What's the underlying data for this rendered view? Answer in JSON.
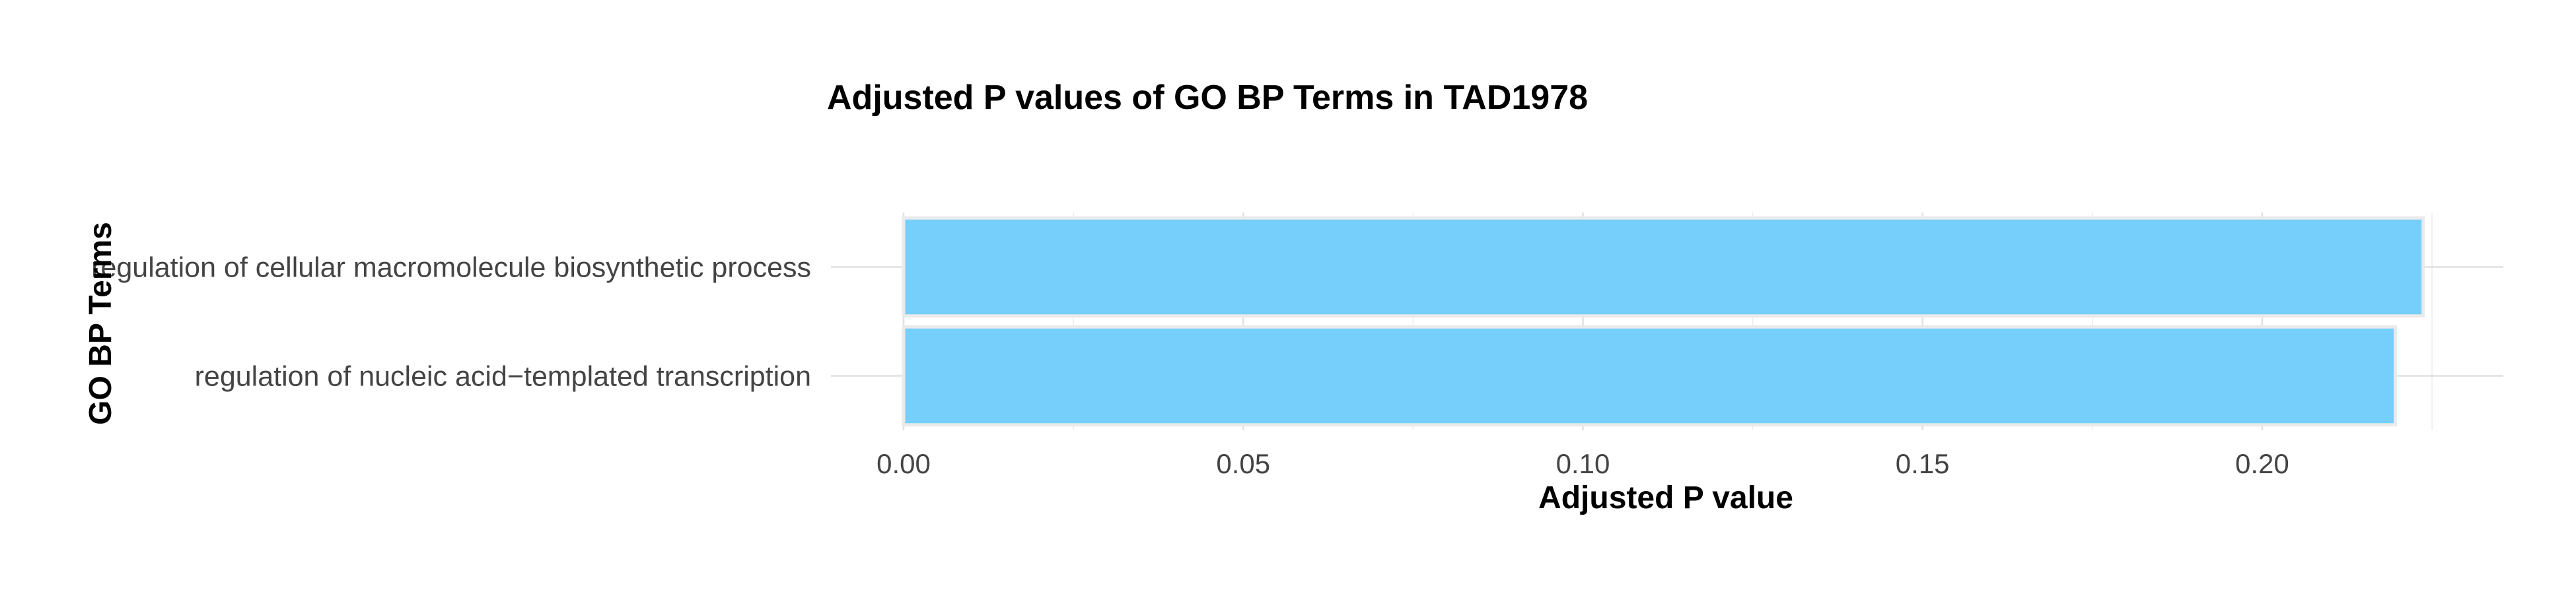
{
  "chart_data": {
    "type": "bar",
    "orientation": "horizontal",
    "title": "Adjusted P values of GO BP Terms in TAD1978",
    "xlabel": "Adjusted P value",
    "ylabel": "GO BP Terms",
    "categories": [
      "regulation of cellular macromolecule biosynthetic process",
      "regulation of nucleic acid−templated transcription"
    ],
    "values": [
      0.2237,
      0.2196
    ],
    "xlim": [
      0,
      0.2355
    ],
    "xticks": [
      0.0,
      0.05,
      0.1,
      0.15,
      0.2
    ],
    "xtick_labels": [
      "0.00",
      "0.05",
      "0.10",
      "0.15",
      "0.20"
    ],
    "bar_color": "#75CFFA",
    "grid": true,
    "legend": "none"
  }
}
